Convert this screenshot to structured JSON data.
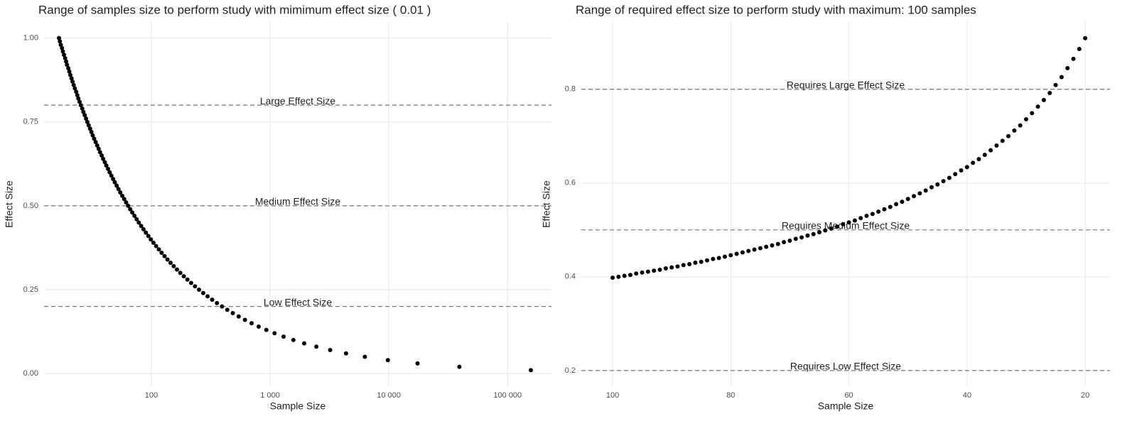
{
  "chart_data": [
    {
      "type": "scatter",
      "title": "Range of samples size to perform study with mimimum effect size ( 0.01 )",
      "x_label": "Sample Size",
      "y_label": "Effect Size",
      "log_x": true,
      "grid": true,
      "color": "#000000",
      "xlim": [
        12.5,
        234000
      ],
      "ylim": [
        -0.04,
        1.05
      ],
      "xticks": [
        100,
        {
          "value": 1000,
          "label": "1 000"
        },
        {
          "value": 10000,
          "label": "10 000"
        },
        {
          "value": 100000,
          "label": "100 000"
        }
      ],
      "yticks": [
        {
          "value": 0,
          "label": "0.00"
        },
        0.25,
        {
          "value": 0.5,
          "label": "0.50"
        },
        0.75,
        {
          "value": 1,
          "label": "1.00"
        }
      ],
      "hlines": [
        {
          "y": 0.8,
          "label": "Large Effect Size"
        },
        {
          "y": 0.5,
          "label": "Medium Effect Size"
        },
        {
          "y": 0.2,
          "label": "Low Effect Size"
        }
      ],
      "x": [
        16.7,
        17.0,
        17.3,
        17.7,
        18.0,
        18.4,
        18.8,
        19.2,
        19.5,
        20.0,
        20.4,
        20.8,
        21.3,
        21.7,
        22.2,
        22.7,
        23.3,
        23.8,
        24.3,
        24.9,
        25.5,
        26.2,
        26.8,
        27.5,
        28.2,
        28.9,
        29.7,
        30.5,
        31.3,
        32.1,
        33.0,
        34.0,
        35.0,
        36.0,
        37.0,
        38.2,
        39.3,
        40.6,
        41.8,
        43.2,
        44.6,
        46.1,
        47.7,
        49.3,
        51.1,
        52.9,
        54.8,
        56.9,
        59.1,
        61.4,
        63.8,
        66.4,
        69.1,
        72.1,
        75.2,
        78.5,
        82.1,
        85.9,
        90.0,
        94.4,
        99.1,
        104.2,
        109.7,
        115.7,
        122.1,
        129.2,
        136.8,
        145.2,
        154.3,
        164.4,
        175.4,
        187.7,
        201.3,
        216.4,
        233.2,
        252.2,
        273.6,
        297.8,
        325.4,
        357.0,
        393.5,
        435.9,
        485.6,
        544.3,
        614.3,
        698.8,
        802.0,
        930.0,
        1091,
        1299,
        1571,
        1939,
        2454,
        3205,
        4362,
        6281,
        9814,
        17445,
        39251,
        157001
      ],
      "values": [
        1.0,
        0.99,
        0.98,
        0.97,
        0.96,
        0.95,
        0.94,
        0.93,
        0.92,
        0.91,
        0.9,
        0.89,
        0.88,
        0.87,
        0.86,
        0.85,
        0.84,
        0.83,
        0.82,
        0.81,
        0.8,
        0.79,
        0.78,
        0.77,
        0.76,
        0.75,
        0.74,
        0.73,
        0.72,
        0.71,
        0.7,
        0.69,
        0.68,
        0.67,
        0.66,
        0.65,
        0.64,
        0.63,
        0.62,
        0.61,
        0.6,
        0.59,
        0.58,
        0.57,
        0.56,
        0.55,
        0.54,
        0.53,
        0.52,
        0.51,
        0.5,
        0.49,
        0.48,
        0.47,
        0.46,
        0.45,
        0.44,
        0.43,
        0.42,
        0.41,
        0.4,
        0.39,
        0.38,
        0.37,
        0.36,
        0.35,
        0.34,
        0.33,
        0.32,
        0.31,
        0.3,
        0.29,
        0.28,
        0.27,
        0.26,
        0.25,
        0.24,
        0.23,
        0.22,
        0.21,
        0.2,
        0.19,
        0.18,
        0.17,
        0.16,
        0.15,
        0.14,
        0.13,
        0.12,
        0.11,
        0.1,
        0.09,
        0.08,
        0.07,
        0.06,
        0.05,
        0.04,
        0.03,
        0.02,
        0.01
      ]
    },
    {
      "type": "scatter",
      "title": "Range of required effect size to perform study with maximum:  100  samples",
      "x_label": "Sample Size",
      "y_label": "Effect Size",
      "log_x": false,
      "grid": true,
      "color": "#000000",
      "xlim": [
        105.3,
        15.8
      ],
      "ylim": [
        0.165,
        0.945
      ],
      "xticks": [
        100,
        80,
        60,
        40,
        20
      ],
      "yticks": [
        0.2,
        0.4,
        0.6,
        0.8
      ],
      "hlines": [
        {
          "y": 0.8,
          "label": "Requires Large Effect Size"
        },
        {
          "y": 0.5,
          "label": "Requires Medium Effect Size"
        },
        {
          "y": 0.2,
          "label": "Requires Low Effect Size"
        }
      ],
      "x": [
        100,
        99,
        98,
        97,
        96,
        95,
        94,
        93,
        92,
        91,
        90,
        89,
        88,
        87,
        86,
        85,
        84,
        83,
        82,
        81,
        80,
        79,
        78,
        77,
        76,
        75,
        74,
        73,
        72,
        71,
        70,
        69,
        68,
        67,
        66,
        65,
        64,
        63,
        62,
        61,
        60,
        59,
        58,
        57,
        56,
        55,
        54,
        53,
        52,
        51,
        50,
        49,
        48,
        47,
        46,
        45,
        44,
        43,
        42,
        41,
        40,
        39,
        38,
        37,
        36,
        35,
        34,
        33,
        32,
        31,
        30,
        29,
        28,
        27,
        26,
        25,
        24,
        23,
        22,
        21,
        20
      ],
      "values": [
        0.398,
        0.4,
        0.402,
        0.404,
        0.407,
        0.409,
        0.411,
        0.413,
        0.415,
        0.418,
        0.42,
        0.422,
        0.425,
        0.427,
        0.43,
        0.432,
        0.435,
        0.438,
        0.44,
        0.443,
        0.446,
        0.449,
        0.452,
        0.455,
        0.458,
        0.461,
        0.464,
        0.467,
        0.47,
        0.474,
        0.477,
        0.481,
        0.484,
        0.488,
        0.491,
        0.495,
        0.499,
        0.503,
        0.507,
        0.512,
        0.516,
        0.52,
        0.525,
        0.53,
        0.534,
        0.539,
        0.544,
        0.549,
        0.555,
        0.56,
        0.566,
        0.572,
        0.578,
        0.584,
        0.591,
        0.597,
        0.604,
        0.611,
        0.619,
        0.627,
        0.634,
        0.643,
        0.651,
        0.66,
        0.67,
        0.68,
        0.69,
        0.7,
        0.712,
        0.723,
        0.736,
        0.749,
        0.763,
        0.777,
        0.792,
        0.809,
        0.826,
        0.845,
        0.865,
        0.886,
        0.909
      ]
    }
  ]
}
